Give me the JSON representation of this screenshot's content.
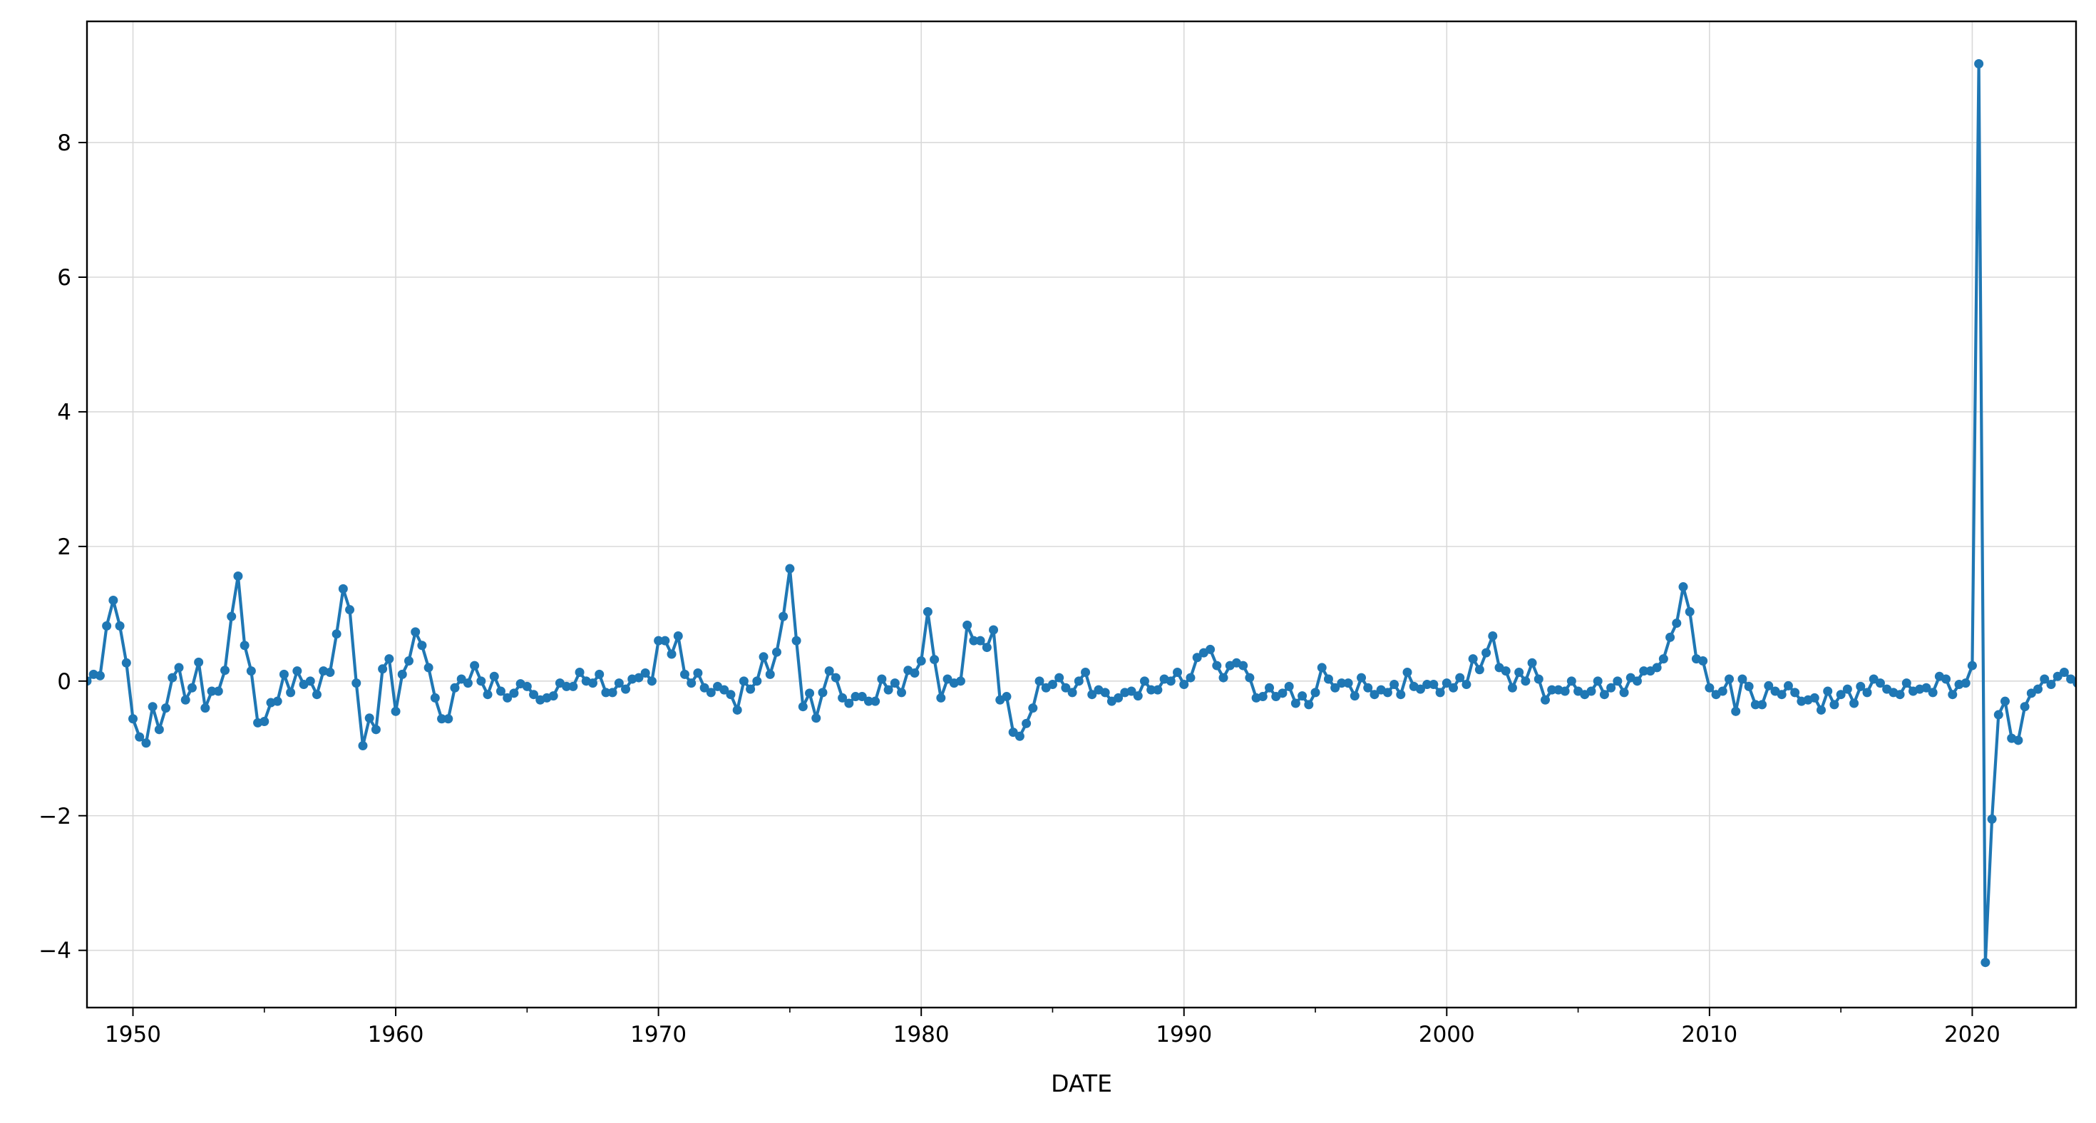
{
  "chart_data": {
    "type": "line",
    "title": "",
    "xlabel": "DATE",
    "ylabel": "",
    "xlim": [
      1948.25,
      2023.95
    ],
    "ylim": [
      -4.85,
      9.8
    ],
    "x_ticks": [
      1950,
      1960,
      1970,
      1980,
      1990,
      2000,
      2010,
      2020
    ],
    "x_tick_labels": [
      "1950",
      "1960",
      "1970",
      "1980",
      "1990",
      "2000",
      "2010",
      "2020"
    ],
    "y_ticks": [
      -4,
      -2,
      0,
      2,
      4,
      6,
      8
    ],
    "y_tick_labels": [
      "−4",
      "−2",
      "0",
      "2",
      "4",
      "6",
      "8"
    ],
    "grid": true,
    "legend": "none",
    "colors": {
      "series": "#1f77b4",
      "grid": "#d9d9d9",
      "axis": "#000000"
    },
    "series": [
      {
        "marker": "circle",
        "x_start": 1948.25,
        "x_step": 0.25,
        "values": [
          0.0,
          0.1,
          0.08,
          0.82,
          1.2,
          0.82,
          0.27,
          -0.56,
          -0.83,
          -0.92,
          -0.38,
          -0.72,
          -0.4,
          0.05,
          0.2,
          -0.28,
          -0.1,
          0.28,
          -0.4,
          -0.15,
          -0.15,
          0.16,
          0.96,
          1.56,
          0.53,
          0.15,
          -0.62,
          -0.6,
          -0.32,
          -0.3,
          0.1,
          -0.17,
          0.15,
          -0.05,
          0.0,
          -0.2,
          0.15,
          0.13,
          0.7,
          1.37,
          1.06,
          -0.03,
          -0.96,
          -0.55,
          -0.72,
          0.18,
          0.33,
          -0.45,
          0.1,
          0.3,
          0.73,
          0.53,
          0.2,
          -0.25,
          -0.56,
          -0.56,
          -0.1,
          0.03,
          -0.03,
          0.23,
          0.0,
          -0.2,
          0.07,
          -0.15,
          -0.25,
          -0.18,
          -0.04,
          -0.08,
          -0.2,
          -0.28,
          -0.25,
          -0.22,
          -0.03,
          -0.08,
          -0.08,
          0.13,
          0.0,
          -0.03,
          0.1,
          -0.17,
          -0.17,
          -0.03,
          -0.12,
          0.03,
          0.05,
          0.12,
          0.0,
          0.6,
          0.6,
          0.4,
          0.67,
          0.1,
          -0.03,
          0.12,
          -0.1,
          -0.17,
          -0.08,
          -0.13,
          -0.2,
          -0.43,
          0.0,
          -0.12,
          0.0,
          0.36,
          0.1,
          0.43,
          0.96,
          1.67,
          0.6,
          -0.38,
          -0.18,
          -0.55,
          -0.17,
          0.15,
          0.05,
          -0.25,
          -0.33,
          -0.23,
          -0.23,
          -0.3,
          -0.3,
          0.03,
          -0.13,
          -0.03,
          -0.17,
          0.16,
          0.12,
          0.3,
          1.03,
          0.32,
          -0.25,
          0.03,
          -0.03,
          0.0,
          0.83,
          0.6,
          0.6,
          0.5,
          0.76,
          -0.28,
          -0.23,
          -0.76,
          -0.82,
          -0.63,
          -0.4,
          0.0,
          -0.1,
          -0.05,
          0.05,
          -0.1,
          -0.17,
          0.0,
          0.13,
          -0.2,
          -0.13,
          -0.17,
          -0.3,
          -0.25,
          -0.17,
          -0.15,
          -0.22,
          0.0,
          -0.13,
          -0.13,
          0.03,
          0.0,
          0.13,
          -0.05,
          0.05,
          0.35,
          0.42,
          0.47,
          0.23,
          0.05,
          0.23,
          0.27,
          0.23,
          0.05,
          -0.25,
          -0.23,
          -0.1,
          -0.23,
          -0.18,
          -0.08,
          -0.33,
          -0.22,
          -0.35,
          -0.17,
          0.2,
          0.03,
          -0.1,
          -0.03,
          -0.03,
          -0.22,
          0.05,
          -0.1,
          -0.2,
          -0.13,
          -0.17,
          -0.05,
          -0.2,
          0.13,
          -0.08,
          -0.12,
          -0.05,
          -0.05,
          -0.17,
          -0.03,
          -0.1,
          0.05,
          -0.05,
          0.33,
          0.17,
          0.42,
          0.67,
          0.2,
          0.15,
          -0.1,
          0.13,
          0.0,
          0.27,
          0.03,
          -0.28,
          -0.13,
          -0.13,
          -0.15,
          0.0,
          -0.15,
          -0.2,
          -0.15,
          0.0,
          -0.2,
          -0.1,
          0.0,
          -0.17,
          0.05,
          0.0,
          0.15,
          0.15,
          0.2,
          0.33,
          0.65,
          0.86,
          1.4,
          1.03,
          0.33,
          0.3,
          -0.1,
          -0.2,
          -0.15,
          0.03,
          -0.45,
          0.03,
          -0.08,
          -0.35,
          -0.35,
          -0.07,
          -0.15,
          -0.2,
          -0.07,
          -0.17,
          -0.3,
          -0.28,
          -0.25,
          -0.43,
          -0.15,
          -0.35,
          -0.2,
          -0.12,
          -0.33,
          -0.08,
          -0.17,
          0.03,
          -0.03,
          -0.12,
          -0.17,
          -0.2,
          -0.03,
          -0.15,
          -0.12,
          -0.1,
          -0.17,
          0.07,
          0.03,
          -0.2,
          -0.05,
          -0.03,
          0.23,
          9.17,
          -4.18,
          -2.05,
          -0.5,
          -0.3,
          -0.85,
          -0.88,
          -0.38,
          -0.18,
          -0.12,
          0.03,
          -0.05,
          0.07,
          0.13,
          0.03,
          -0.03
        ]
      }
    ]
  }
}
